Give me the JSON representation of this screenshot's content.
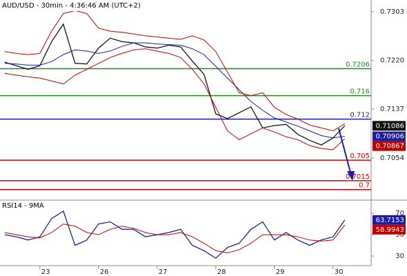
{
  "chart_data": [
    {
      "type": "line",
      "title": "AUD/USD - 30min - 4:36:46 AM (UTC+2)",
      "x": [
        -0.6,
        -0.4,
        -0.2,
        0,
        0.2,
        0.4,
        0.6,
        0.8,
        1,
        1.2,
        1.4,
        1.6,
        1.8,
        2,
        2.2,
        2.4,
        2.6,
        2.8,
        3,
        3.2,
        3.4,
        3.6,
        3.8,
        4,
        4.2,
        4.4,
        4.6,
        4.8,
        5,
        5.2
      ],
      "xlim": [
        -0.68,
        5.65
      ],
      "ylim": [
        0.6982,
        0.7323
      ],
      "yticks": [
        0.7303,
        {
          "value": 0.722,
          "label": "0.7220"
        },
        0.7137,
        0.7054
      ],
      "series": [
        {
          "name": "AUD/USD",
          "color": "#111111",
          "values": [
            0.7217,
            0.7211,
            0.7205,
            0.7211,
            0.7252,
            0.7282,
            0.7215,
            0.7214,
            0.7241,
            0.7258,
            0.7252,
            0.725,
            0.7243,
            0.7241,
            0.7246,
            0.7243,
            0.7219,
            0.7196,
            0.7129,
            0.7121,
            0.7131,
            0.7141,
            0.7105,
            0.7109,
            0.7111,
            0.7094,
            0.7084,
            0.7076,
            0.7088,
            0.71086
          ]
        },
        {
          "name": "MA",
          "color": "#1c1c9c",
          "values": [
            0.7215,
            0.7214,
            0.7212,
            0.7212,
            0.7218,
            0.723,
            0.7238,
            0.7236,
            0.7232,
            0.7236,
            0.7244,
            0.725,
            0.725,
            0.7248,
            0.7247,
            0.7246,
            0.724,
            0.723,
            0.721,
            0.719,
            0.717,
            0.715,
            0.7135,
            0.7122,
            0.7115,
            0.7108,
            0.71,
            0.7092,
            0.7088,
            0.70906
          ]
        },
        {
          "name": "BB upper",
          "color": "#c00000",
          "values": [
            0.7235,
            0.7232,
            0.723,
            0.7232,
            0.727,
            0.73,
            0.7305,
            0.73,
            0.7275,
            0.727,
            0.7268,
            0.7265,
            0.7262,
            0.726,
            0.7258,
            0.7256,
            0.7262,
            0.7255,
            0.7235,
            0.72,
            0.7165,
            0.716,
            0.7165,
            0.714,
            0.7128,
            0.712,
            0.711,
            0.7105,
            0.71,
            0.7112
          ]
        },
        {
          "name": "BB lower",
          "color": "#c00000",
          "values": [
            0.7198,
            0.7195,
            0.7192,
            0.719,
            0.7185,
            0.718,
            0.7195,
            0.7205,
            0.7215,
            0.7225,
            0.7232,
            0.7238,
            0.724,
            0.7236,
            0.7232,
            0.7225,
            0.7205,
            0.718,
            0.714,
            0.71,
            0.7085,
            0.7095,
            0.7105,
            0.7098,
            0.709,
            0.7085,
            0.7075,
            0.707,
            0.7068,
            0.70867
          ]
        }
      ],
      "levels": [
        {
          "value": 0.7206,
          "color": "#1a8a1a"
        },
        {
          "value": 0.716,
          "color": "#1a8a1a"
        },
        {
          "value": 0.712,
          "color": "#1c1c9c"
        },
        {
          "value": 0.705,
          "color": "#d00000"
        },
        {
          "value": 0.7015,
          "color": "#d00000"
        },
        {
          "value": 0.7,
          "color": "#d00000"
        }
      ]
    },
    {
      "type": "line",
      "title": "RSI14 - 9MA",
      "x": [
        -0.6,
        -0.4,
        -0.2,
        0,
        0.2,
        0.4,
        0.6,
        0.8,
        1,
        1.2,
        1.4,
        1.6,
        1.8,
        2,
        2.2,
        2.4,
        2.6,
        2.8,
        3,
        3.2,
        3.4,
        3.6,
        3.8,
        4,
        4.2,
        4.4,
        4.6,
        4.8,
        5,
        5.2
      ],
      "xlim": [
        -0.68,
        5.65
      ],
      "xticks": [
        {
          "value": 0,
          "label": "23"
        },
        {
          "value": 1,
          "label": "26"
        },
        {
          "value": 2,
          "label": "27"
        },
        {
          "value": 3,
          "label": "28"
        },
        {
          "value": 4,
          "label": "29"
        },
        {
          "value": 5,
          "label": "30"
        }
      ],
      "ylim": [
        21,
        82.3
      ],
      "yticks": [
        70,
        50,
        30
      ],
      "series": [
        {
          "name": "RSI14",
          "color": "#1c1c9c",
          "values": [
            50,
            48,
            45,
            48,
            65,
            72,
            40,
            45,
            60,
            62,
            55,
            55,
            48,
            50,
            52,
            55,
            40,
            35,
            28,
            38,
            42,
            55,
            62,
            45,
            52,
            45,
            40,
            45,
            48,
            63.7153
          ]
        },
        {
          "name": "9MA",
          "color": "#c00000",
          "values": [
            52,
            50,
            48,
            47,
            52,
            60,
            58,
            52,
            50,
            55,
            58,
            56,
            52,
            50,
            50,
            52,
            48,
            42,
            35,
            33,
            36,
            42,
            50,
            50,
            50,
            48,
            45,
            44,
            45,
            58.9943
          ]
        }
      ]
    }
  ]
}
